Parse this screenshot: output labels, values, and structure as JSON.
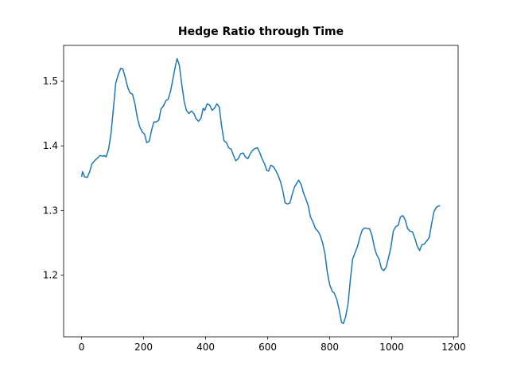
{
  "chart_data": {
    "type": "line",
    "title": "Hedge Ratio through Time",
    "x": [
      0,
      3,
      10,
      18,
      26,
      33,
      44,
      51,
      59,
      69,
      74,
      79,
      87,
      95,
      103,
      110,
      118,
      126,
      133,
      141,
      149,
      156,
      164,
      172,
      179,
      187,
      195,
      203,
      210,
      218,
      226,
      233,
      241,
      249,
      256,
      264,
      272,
      279,
      287,
      295,
      303,
      308,
      315,
      323,
      331,
      338,
      346,
      354,
      362,
      369,
      377,
      385,
      392,
      397,
      405,
      413,
      421,
      428,
      436,
      444,
      451,
      459,
      467,
      474,
      482,
      490,
      497,
      505,
      513,
      521,
      528,
      536,
      544,
      551,
      559,
      567,
      574,
      582,
      590,
      597,
      603,
      610,
      618,
      626,
      633,
      641,
      649,
      656,
      664,
      672,
      679,
      687,
      695,
      700,
      708,
      715,
      723,
      731,
      738,
      746,
      754,
      762,
      769,
      777,
      785,
      792,
      800,
      808,
      815,
      823,
      831,
      838,
      844,
      851,
      859,
      867,
      874,
      882,
      890,
      897,
      905,
      913,
      921,
      928,
      936,
      944,
      951,
      959,
      967,
      974,
      982,
      990,
      997,
      1005,
      1013,
      1021,
      1028,
      1036,
      1044,
      1051,
      1059,
      1067,
      1074,
      1082,
      1090,
      1097,
      1105,
      1113,
      1121,
      1128,
      1136,
      1144,
      1151,
      1156
    ],
    "series": [
      {
        "color": "#1f77b4",
        "values": [
          1.352,
          1.36,
          1.352,
          1.351,
          1.36,
          1.372,
          1.378,
          1.381,
          1.385,
          1.384,
          1.385,
          1.383,
          1.395,
          1.42,
          1.46,
          1.497,
          1.51,
          1.52,
          1.519,
          1.505,
          1.49,
          1.482,
          1.48,
          1.465,
          1.445,
          1.43,
          1.422,
          1.418,
          1.405,
          1.407,
          1.425,
          1.437,
          1.437,
          1.44,
          1.457,
          1.462,
          1.47,
          1.472,
          1.485,
          1.505,
          1.525,
          1.535,
          1.525,
          1.495,
          1.468,
          1.455,
          1.45,
          1.454,
          1.45,
          1.442,
          1.438,
          1.443,
          1.458,
          1.455,
          1.465,
          1.463,
          1.455,
          1.458,
          1.465,
          1.46,
          1.432,
          1.408,
          1.405,
          1.397,
          1.395,
          1.385,
          1.377,
          1.38,
          1.388,
          1.389,
          1.383,
          1.38,
          1.388,
          1.393,
          1.396,
          1.397,
          1.39,
          1.38,
          1.372,
          1.362,
          1.361,
          1.37,
          1.368,
          1.362,
          1.355,
          1.345,
          1.33,
          1.312,
          1.31,
          1.312,
          1.325,
          1.337,
          1.343,
          1.347,
          1.34,
          1.328,
          1.318,
          1.307,
          1.29,
          1.282,
          1.272,
          1.268,
          1.262,
          1.25,
          1.232,
          1.205,
          1.185,
          1.175,
          1.172,
          1.162,
          1.145,
          1.127,
          1.125,
          1.135,
          1.155,
          1.195,
          1.225,
          1.235,
          1.245,
          1.258,
          1.27,
          1.273,
          1.272,
          1.272,
          1.262,
          1.243,
          1.232,
          1.225,
          1.21,
          1.207,
          1.212,
          1.228,
          1.242,
          1.268,
          1.275,
          1.277,
          1.29,
          1.292,
          1.285,
          1.272,
          1.268,
          1.267,
          1.258,
          1.245,
          1.238,
          1.247,
          1.248,
          1.253,
          1.258,
          1.278,
          1.298,
          1.305,
          1.307,
          1.307
        ]
      }
    ],
    "xlim": [
      -58,
      1214
    ],
    "xticks": [
      0,
      200,
      400,
      600,
      800,
      1000,
      1200
    ],
    "ylim": [
      1.1045,
      1.5555
    ],
    "yticks": [
      1.2,
      1.3,
      1.4,
      1.5
    ],
    "grid": false
  }
}
